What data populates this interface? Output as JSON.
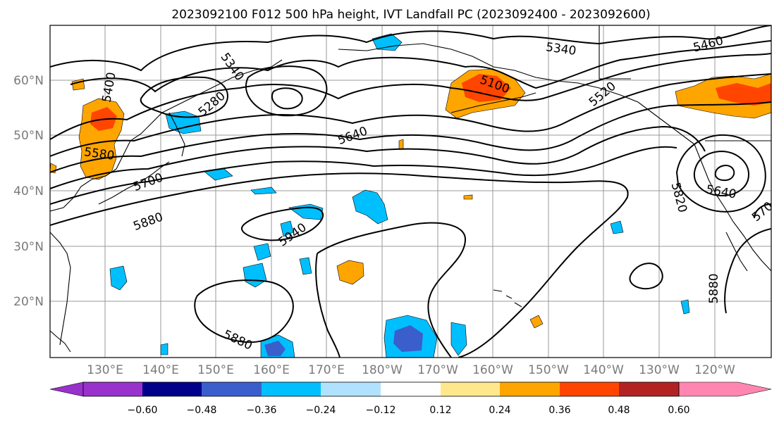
{
  "title": "2023092100 F012 500 hPa height, IVT Landfall PC (2023092400 - 2023092600)",
  "lat_labels": [
    "60°N",
    "50°N",
    "40°N",
    "30°N",
    "20°N"
  ],
  "lon_labels": [
    "130°E",
    "140°E",
    "150°E",
    "160°E",
    "170°E",
    "180°W",
    "170°W",
    "160°W",
    "150°W",
    "140°W",
    "130°W",
    "120°W"
  ],
  "contour_labels": [
    "5400",
    "5340",
    "5280",
    "5580",
    "5700",
    "5880",
    "5940",
    "5880",
    "5640",
    "5100",
    "5340",
    "5460",
    "5520",
    "5820",
    "5640",
    "570",
    "5880"
  ],
  "colorbar": {
    "tick_labels": [
      "−0.60",
      "−0.48",
      "−0.36",
      "−0.24",
      "−0.12",
      "0.12",
      "0.24",
      "0.36",
      "0.48",
      "0.60"
    ],
    "colors": [
      "#9932cc",
      "#00008b",
      "#3a5fcd",
      "#00bfff",
      "#b0e2ff",
      "#ffffff",
      "#ffe88c",
      "#ffa500",
      "#ff4500",
      "#b22222",
      "#ff86b0"
    ]
  },
  "fill_colors": {
    "neg_light": "#b0e2ff",
    "neg_mid": "#00bfff",
    "neg_strong": "#3a5fcd",
    "pos_light": "#ffe88c",
    "pos_mid": "#ffa500",
    "pos_strong": "#ff4500"
  }
}
